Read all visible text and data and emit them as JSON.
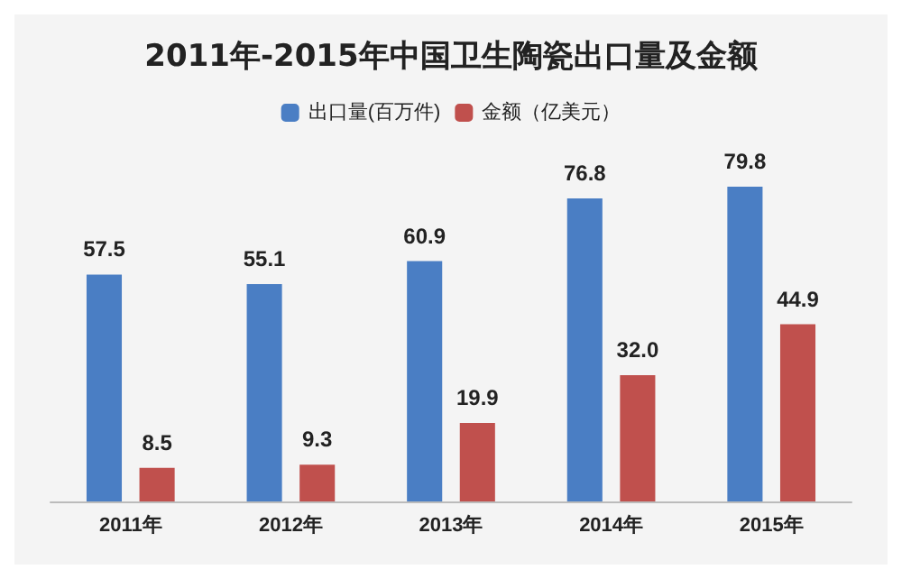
{
  "chart_data": {
    "type": "bar",
    "title": "2011年-2015年中国卫生陶瓷出口量及金额",
    "categories": [
      "2011年",
      "2012年",
      "2013年",
      "2014年",
      "2015年"
    ],
    "series": [
      {
        "name": "出口量(百万件)",
        "color": "#4a7ec4",
        "values": [
          57.5,
          55.1,
          60.9,
          76.8,
          79.8
        ],
        "value_labels": [
          "57.5",
          "55.1",
          "60.9",
          "76.8",
          "79.8"
        ]
      },
      {
        "name": "金额（亿美元）",
        "color": "#c0504d",
        "values": [
          8.5,
          9.3,
          19.9,
          32.0,
          44.9
        ],
        "value_labels": [
          "8.5",
          "9.3",
          "19.9",
          "32.0",
          "44.9"
        ]
      }
    ],
    "legend": "top",
    "tick_labels": "x"
  }
}
